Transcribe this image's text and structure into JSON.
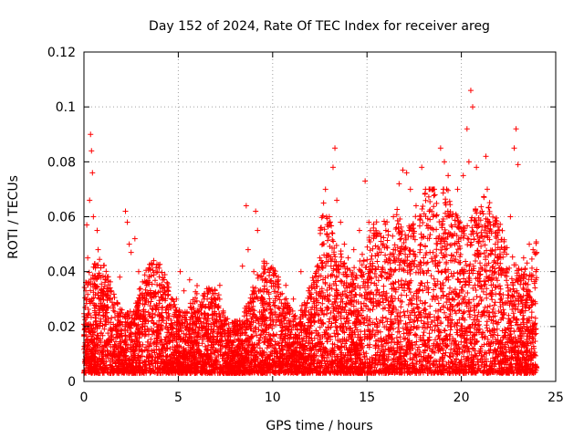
{
  "chart_data": {
    "type": "scatter",
    "title": "Day 152 of 2024, Rate Of TEC Index for receiver areg",
    "xlabel": "GPS time / hours",
    "ylabel": "ROTI / TECUs",
    "xlim": [
      0,
      25
    ],
    "ylim": [
      0,
      0.12
    ],
    "x_ticks": [
      0,
      5,
      10,
      15,
      20,
      25
    ],
    "x_tick_labels": [
      "0",
      "5",
      "10",
      "15",
      "20",
      "25"
    ],
    "y_ticks": [
      0,
      0.02,
      0.04,
      0.06,
      0.08,
      0.1,
      0.12
    ],
    "y_tick_labels": [
      "0",
      "0.02",
      "0.04",
      "0.06",
      "0.08",
      "0.1",
      "0.12"
    ],
    "grid": true,
    "legend": "none",
    "marker": "+",
    "marker_color": "#ff0000",
    "series": [
      {
        "x": [
          0.05,
          0.1,
          0.15,
          0.2,
          0.3,
          0.35,
          0.4,
          0.45,
          0.5,
          0.7,
          0.75,
          0.8,
          1.2,
          1.6,
          1.9,
          2.2,
          2.3,
          2.4,
          2.5,
          2.7,
          2.9,
          3.3,
          3.7,
          4.0,
          4.4,
          4.6,
          4.9,
          5.1,
          5.3,
          5.6,
          6.0,
          6.3,
          6.6,
          6.9,
          7.2,
          7.6,
          8.0,
          8.4,
          8.6,
          8.7,
          9.0,
          9.1,
          9.2,
          9.5,
          9.9,
          10.3,
          10.7,
          11.1,
          11.5,
          11.9,
          12.2,
          12.5,
          12.7,
          12.8,
          13.0,
          13.2,
          13.3,
          13.4,
          13.6,
          13.8,
          14.0,
          14.3,
          14.6,
          14.9,
          15.1,
          15.3,
          15.6,
          16.0,
          16.4,
          16.7,
          16.9,
          17.1,
          17.3,
          17.6,
          17.9,
          18.1,
          18.3,
          18.6,
          18.9,
          19.1,
          19.3,
          19.5,
          19.8,
          20.1,
          20.3,
          20.4,
          20.5,
          20.6,
          20.8,
          21.1,
          21.3,
          21.5,
          21.8,
          22.0,
          22.3,
          22.6,
          22.8,
          22.9,
          23.0,
          23.3,
          23.6,
          23.8,
          23.95
        ],
        "y": [
          0.008,
          0.033,
          0.057,
          0.045,
          0.066,
          0.09,
          0.084,
          0.076,
          0.06,
          0.055,
          0.048,
          0.03,
          0.025,
          0.028,
          0.038,
          0.062,
          0.058,
          0.05,
          0.047,
          0.052,
          0.04,
          0.03,
          0.044,
          0.035,
          0.036,
          0.028,
          0.03,
          0.04,
          0.033,
          0.037,
          0.025,
          0.028,
          0.024,
          0.03,
          0.035,
          0.015,
          0.02,
          0.042,
          0.064,
          0.048,
          0.04,
          0.062,
          0.055,
          0.03,
          0.025,
          0.038,
          0.035,
          0.03,
          0.04,
          0.033,
          0.036,
          0.045,
          0.065,
          0.07,
          0.06,
          0.078,
          0.085,
          0.066,
          0.058,
          0.05,
          0.045,
          0.048,
          0.055,
          0.073,
          0.058,
          0.043,
          0.046,
          0.055,
          0.06,
          0.072,
          0.077,
          0.076,
          0.07,
          0.064,
          0.078,
          0.07,
          0.062,
          0.068,
          0.085,
          0.08,
          0.075,
          0.06,
          0.07,
          0.075,
          0.092,
          0.08,
          0.106,
          0.1,
          0.078,
          0.062,
          0.082,
          0.058,
          0.05,
          0.055,
          0.048,
          0.06,
          0.085,
          0.092,
          0.079,
          0.045,
          0.05,
          0.048,
          0.04
        ]
      }
    ]
  }
}
